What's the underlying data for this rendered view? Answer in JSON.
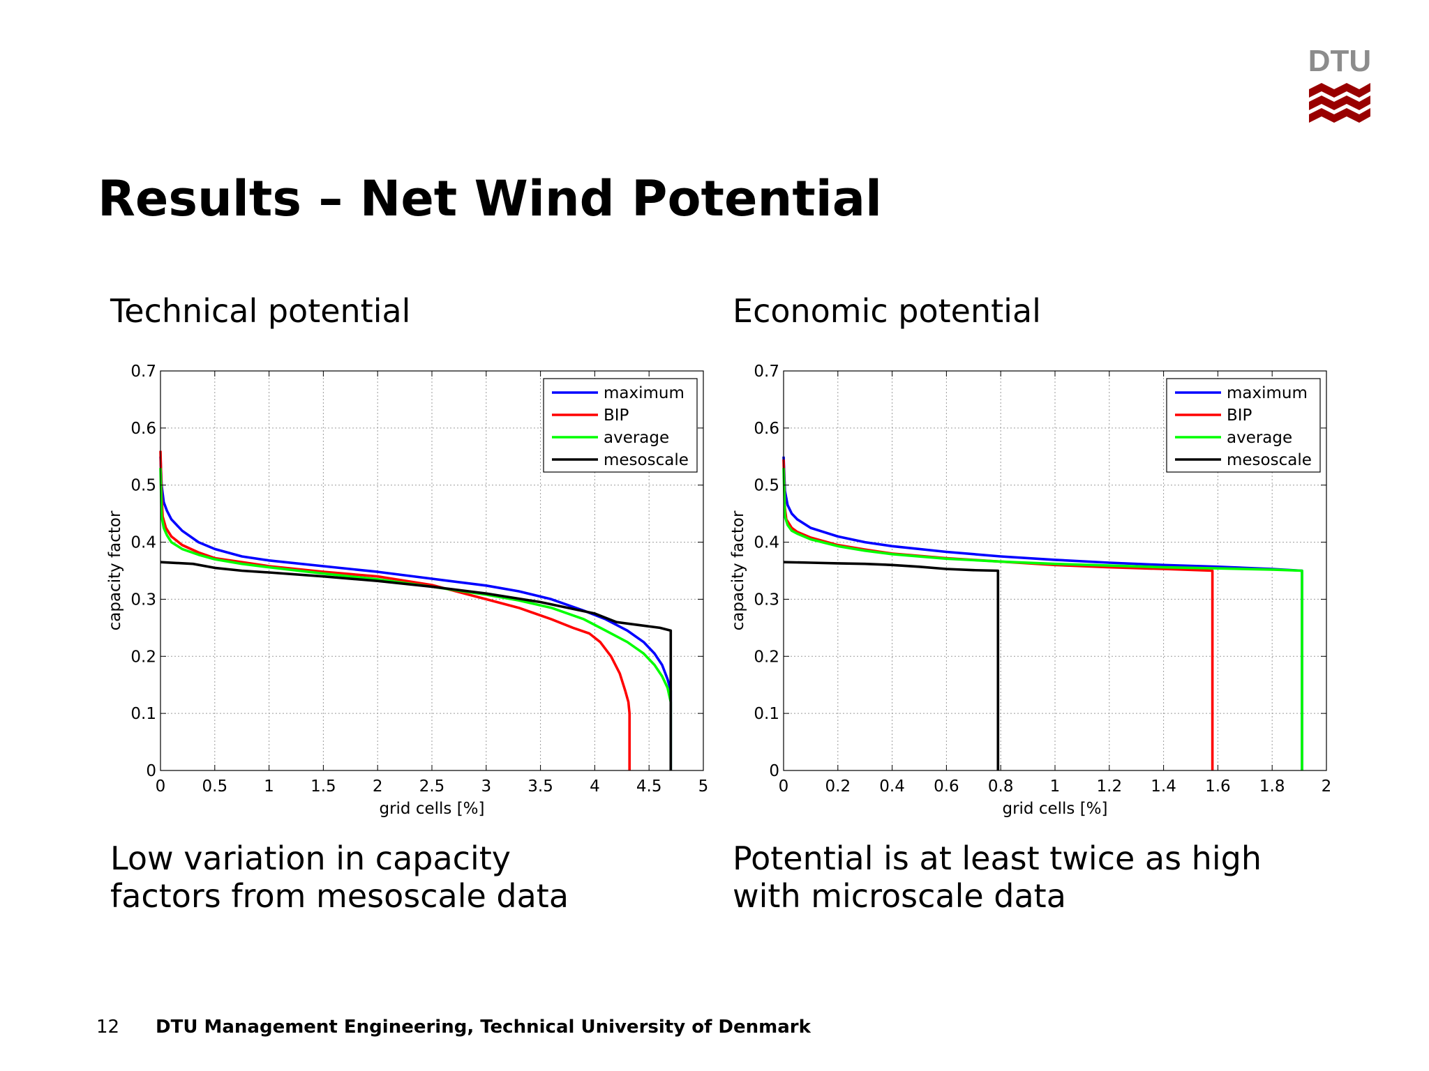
{
  "slide": {
    "title": "Results – Net Wind Potential",
    "logo_text": "DTU",
    "page_number": "12",
    "footer": "DTU Management Engineering, Technical University of Denmark"
  },
  "panels": [
    {
      "subtitle": "Technical potential",
      "caption_lines": [
        "Low variation in capacity",
        "factors from mesoscale data"
      ]
    },
    {
      "subtitle": "Economic potential",
      "caption_lines": [
        "Potential is at least twice as high",
        "with microscale data"
      ]
    }
  ],
  "colors": {
    "maximum": "#0000ff",
    "BIP": "#ff0000",
    "average": "#00ff00",
    "mesoscale": "#000000",
    "logo_red": "#990000",
    "logo_gray": "#8c8c8c"
  },
  "chart_data": [
    {
      "type": "line",
      "xlabel": "grid cells [%]",
      "ylabel": "capacity factor",
      "xlim": [
        0,
        5
      ],
      "ylim": [
        0,
        0.7
      ],
      "xticks": [
        0,
        0.5,
        1,
        1.5,
        2,
        2.5,
        3,
        3.5,
        4,
        4.5,
        5
      ],
      "yticks": [
        0,
        0.1,
        0.2,
        0.3,
        0.4,
        0.5,
        0.6,
        0.7
      ],
      "grid": true,
      "legend": "top-right",
      "series": [
        {
          "name": "maximum",
          "x": [
            0,
            0.01,
            0.03,
            0.06,
            0.1,
            0.2,
            0.35,
            0.5,
            0.75,
            1,
            1.5,
            2,
            2.5,
            3,
            3.3,
            3.6,
            3.9,
            4.1,
            4.3,
            4.45,
            4.55,
            4.62,
            4.67,
            4.7,
            4.7
          ],
          "y": [
            0.55,
            0.5,
            0.47,
            0.455,
            0.44,
            0.42,
            0.4,
            0.388,
            0.375,
            0.368,
            0.358,
            0.348,
            0.336,
            0.324,
            0.314,
            0.3,
            0.28,
            0.265,
            0.245,
            0.225,
            0.205,
            0.185,
            0.16,
            0.14,
            0
          ]
        },
        {
          "name": "BIP",
          "x": [
            0,
            0.01,
            0.02,
            0.05,
            0.1,
            0.2,
            0.35,
            0.5,
            0.75,
            1,
            1.5,
            2,
            2.5,
            2.8,
            3,
            3.3,
            3.6,
            3.8,
            3.95,
            4.05,
            4.15,
            4.23,
            4.28,
            4.31,
            4.32,
            4.32
          ],
          "y": [
            0.56,
            0.48,
            0.445,
            0.425,
            0.41,
            0.395,
            0.382,
            0.372,
            0.365,
            0.358,
            0.348,
            0.34,
            0.325,
            0.31,
            0.3,
            0.285,
            0.265,
            0.25,
            0.24,
            0.225,
            0.2,
            0.17,
            0.14,
            0.12,
            0.1,
            0
          ]
        },
        {
          "name": "average",
          "x": [
            0,
            0.01,
            0.03,
            0.06,
            0.1,
            0.2,
            0.35,
            0.5,
            0.75,
            1,
            1.5,
            2,
            2.5,
            3,
            3.3,
            3.6,
            3.9,
            4.1,
            4.3,
            4.45,
            4.55,
            4.62,
            4.67,
            4.7,
            4.7
          ],
          "y": [
            0.53,
            0.445,
            0.425,
            0.412,
            0.4,
            0.388,
            0.378,
            0.37,
            0.362,
            0.356,
            0.345,
            0.335,
            0.322,
            0.308,
            0.298,
            0.285,
            0.265,
            0.245,
            0.225,
            0.205,
            0.185,
            0.165,
            0.145,
            0.12,
            0
          ]
        },
        {
          "name": "mesoscale",
          "x": [
            0,
            0.3,
            0.5,
            0.75,
            1,
            1.5,
            2,
            2.5,
            3,
            3.5,
            4,
            4.2,
            4.4,
            4.6,
            4.7,
            4.7
          ],
          "y": [
            0.365,
            0.362,
            0.355,
            0.35,
            0.347,
            0.34,
            0.332,
            0.322,
            0.31,
            0.295,
            0.275,
            0.26,
            0.255,
            0.25,
            0.245,
            0
          ]
        }
      ]
    },
    {
      "type": "line",
      "xlabel": "grid cells [%]",
      "ylabel": "capacity factor",
      "xlim": [
        0,
        2
      ],
      "ylim": [
        0,
        0.7
      ],
      "xticks": [
        0,
        0.2,
        0.4,
        0.6,
        0.8,
        1,
        1.2,
        1.4,
        1.6,
        1.8,
        2
      ],
      "yticks": [
        0,
        0.1,
        0.2,
        0.3,
        0.4,
        0.5,
        0.6,
        0.7
      ],
      "grid": true,
      "legend": "top-right",
      "series": [
        {
          "name": "maximum",
          "x": [
            0,
            0.005,
            0.015,
            0.03,
            0.05,
            0.1,
            0.2,
            0.3,
            0.4,
            0.6,
            0.8,
            1,
            1.2,
            1.4,
            1.6,
            1.8,
            1.91,
            1.91
          ],
          "y": [
            0.55,
            0.49,
            0.465,
            0.45,
            0.44,
            0.425,
            0.41,
            0.4,
            0.393,
            0.383,
            0.375,
            0.369,
            0.364,
            0.36,
            0.357,
            0.353,
            0.35,
            0
          ]
        },
        {
          "name": "BIP",
          "x": [
            0,
            0.005,
            0.01,
            0.03,
            0.05,
            0.1,
            0.2,
            0.3,
            0.4,
            0.6,
            0.8,
            1,
            1.2,
            1.4,
            1.58,
            1.58
          ],
          "y": [
            0.545,
            0.46,
            0.44,
            0.425,
            0.418,
            0.408,
            0.395,
            0.387,
            0.38,
            0.372,
            0.366,
            0.36,
            0.356,
            0.353,
            0.35,
            0
          ]
        },
        {
          "name": "average",
          "x": [
            0,
            0.005,
            0.015,
            0.03,
            0.05,
            0.1,
            0.2,
            0.3,
            0.4,
            0.6,
            0.8,
            1,
            1.2,
            1.4,
            1.6,
            1.8,
            1.91,
            1.91
          ],
          "y": [
            0.53,
            0.445,
            0.43,
            0.42,
            0.415,
            0.405,
            0.393,
            0.385,
            0.379,
            0.371,
            0.366,
            0.362,
            0.359,
            0.356,
            0.354,
            0.352,
            0.35,
            0
          ]
        },
        {
          "name": "mesoscale",
          "x": [
            0,
            0.1,
            0.2,
            0.3,
            0.4,
            0.5,
            0.6,
            0.7,
            0.79,
            0.79
          ],
          "y": [
            0.365,
            0.364,
            0.363,
            0.362,
            0.36,
            0.357,
            0.353,
            0.351,
            0.35,
            0
          ]
        }
      ]
    }
  ]
}
